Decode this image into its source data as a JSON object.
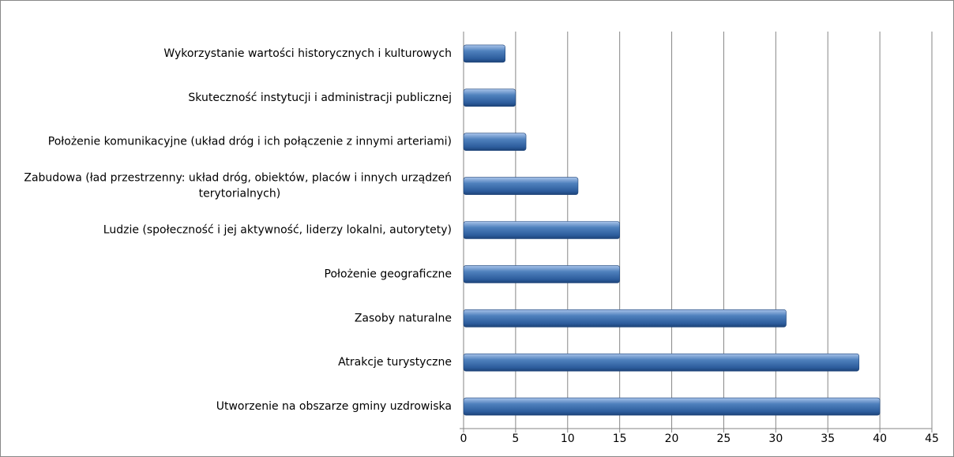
{
  "chart_data": {
    "type": "bar",
    "orientation": "horizontal",
    "categories": [
      "Wykorzystanie wartości historycznych i kulturowych",
      "Skuteczność instytucji i administracji publicznej",
      "Położenie komunikacyjne (układ dróg i ich połączenie z innymi arteriami)",
      "Zabudowa (ład przestrzenny: układ dróg, obiektów, placów i innych urządzeń terytorialnych)",
      "Ludzie (społeczność i jej aktywność, liderzy lokalni, autorytety)",
      "Położenie geograficzne",
      "Zasoby naturalne",
      "Atrakcje turystyczne",
      "Utworzenie na obszarze gminy uzdrowiska"
    ],
    "values": [
      4,
      5,
      6,
      11,
      15,
      15,
      31,
      38,
      40
    ],
    "color": "#4f81bd",
    "xlim": [
      0,
      45
    ],
    "xticks": [
      0,
      5,
      10,
      15,
      20,
      25,
      30,
      35,
      40,
      45
    ],
    "grid": true
  }
}
